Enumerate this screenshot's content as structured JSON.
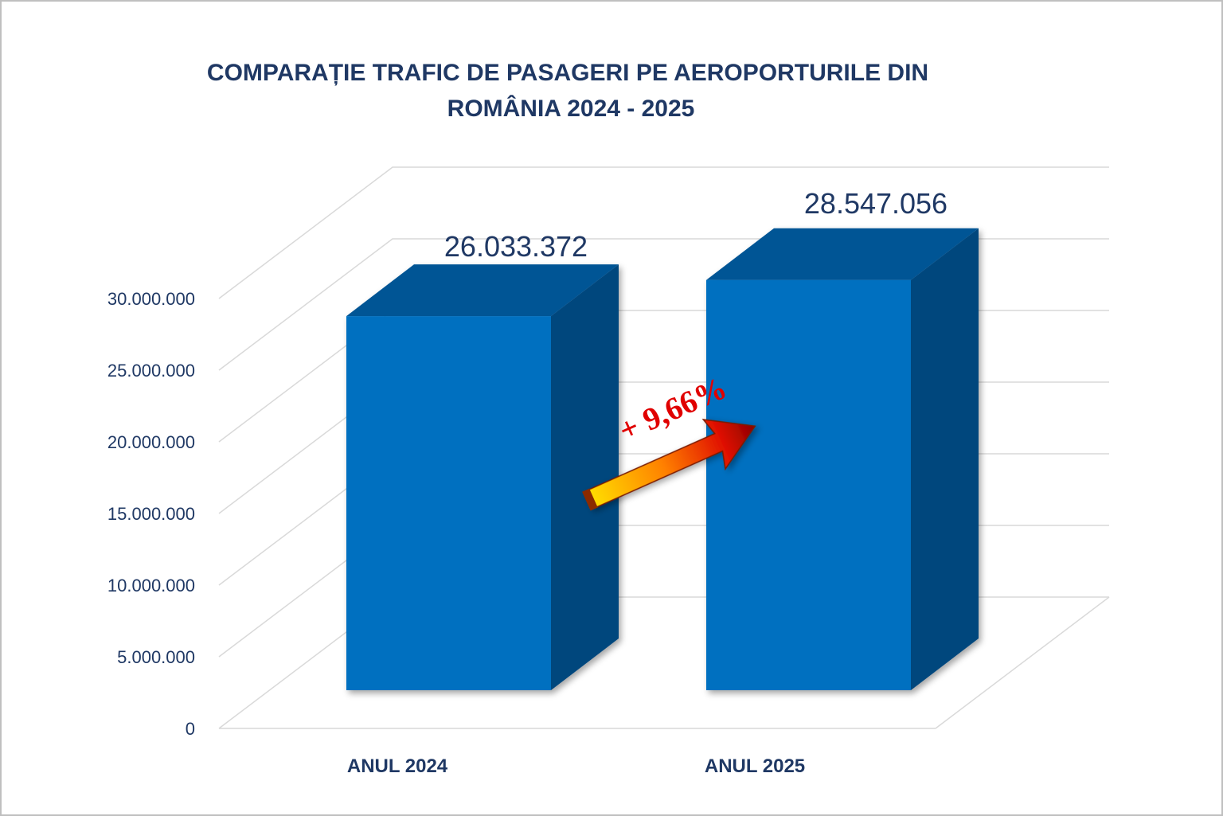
{
  "chart_data": {
    "type": "bar",
    "style": "3d-column",
    "title_lines": [
      "COMPARAȚIE TRAFIC DE PASAGERI PE AEROPORTURILE DIN",
      "ROMÂNIA 2024 - 2025"
    ],
    "categories": [
      "ANUL 2024",
      "ANUL 2025"
    ],
    "values": [
      26033372,
      28547056
    ],
    "data_labels": [
      "26.033.372",
      "28.547.056"
    ],
    "y_ticks": [
      0,
      5000000,
      10000000,
      15000000,
      20000000,
      25000000,
      30000000
    ],
    "y_tick_labels": [
      "0",
      "5.000.000",
      "10.000.000",
      "15.000.000",
      "20.000.000",
      "25.000.000",
      "30.000.000"
    ],
    "ylim": [
      0,
      30000000
    ],
    "grid": true,
    "legend": "none",
    "annotation": "+ 9,66%",
    "colors": {
      "bar_front": "#0070C0",
      "bar_side": "#00477D",
      "bar_top": "#005595",
      "text": "#1F3864",
      "annotation": "#E00000",
      "grid": "#D9D9D9"
    }
  }
}
